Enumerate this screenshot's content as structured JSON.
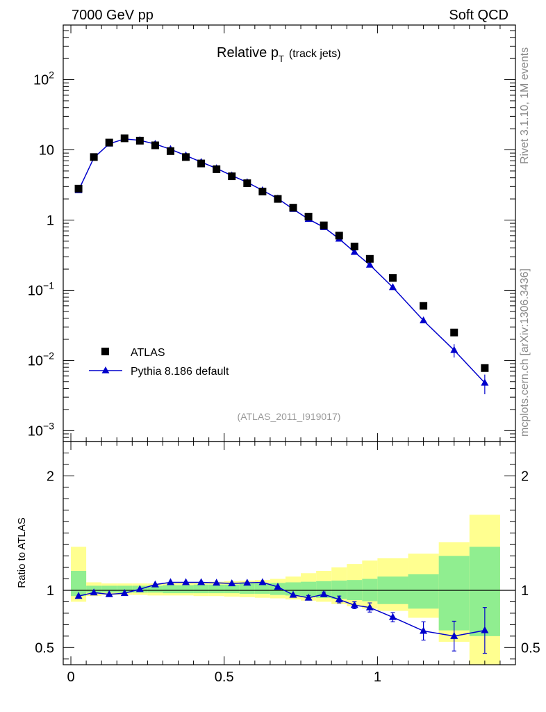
{
  "header": {
    "energy_label": "7000 GeV pp",
    "category_label": "Soft QCD",
    "title_main": "Relative p",
    "title_sub": "T",
    "title_suffix": "(track jets)",
    "analysis_label": "(ATLAS_2011_I919017)",
    "rivet_label": "Rivet 3.1.10,  1M events",
    "mcplots_label": "mcplots.cern.ch [arXiv:1306.3436]"
  },
  "legend": {
    "data_label": "ATLAS",
    "mc_label": "Pythia 8.186 default"
  },
  "colors": {
    "mc": "#0000cc",
    "data": "#000000",
    "band_inner": "#90ee90",
    "band_outer": "#ffff90",
    "analysis_text": "#999999",
    "side_text": "#888888"
  },
  "chart_data": [
    {
      "type": "scatter",
      "name": "main",
      "yscale": "log",
      "ylim": [
        0.0007,
        600
      ],
      "xlim": [
        -0.025,
        1.45
      ],
      "ylabel": "",
      "yticks": [
        {
          "v": 0.001,
          "base": "10",
          "exp": "−3"
        },
        {
          "v": 0.01,
          "base": "10",
          "exp": "−2"
        },
        {
          "v": 0.1,
          "base": "10",
          "exp": "−1"
        },
        {
          "v": 1,
          "base": "1",
          "exp": ""
        },
        {
          "v": 10,
          "base": "10",
          "exp": ""
        },
        {
          "v": 100,
          "base": "10",
          "exp": "2"
        }
      ],
      "series": [
        {
          "name": "ATLAS",
          "x": [
            0.025,
            0.075,
            0.125,
            0.175,
            0.225,
            0.275,
            0.325,
            0.375,
            0.425,
            0.475,
            0.525,
            0.575,
            0.625,
            0.675,
            0.725,
            0.775,
            0.825,
            0.875,
            0.925,
            0.975,
            1.05,
            1.15,
            1.25,
            1.35
          ],
          "y": [
            2.8,
            7.9,
            12.7,
            14.6,
            13.5,
            11.6,
            9.6,
            7.9,
            6.4,
            5.3,
            4.2,
            3.35,
            2.55,
            2.0,
            1.5,
            1.12,
            0.84,
            0.6,
            0.42,
            0.28,
            0.15,
            0.06,
            0.025,
            0.0078
          ]
        },
        {
          "name": "Pythia 8.186 default",
          "x": [
            0.025,
            0.075,
            0.125,
            0.175,
            0.225,
            0.275,
            0.325,
            0.375,
            0.425,
            0.475,
            0.525,
            0.575,
            0.625,
            0.675,
            0.725,
            0.775,
            0.825,
            0.875,
            0.925,
            0.975,
            1.05,
            1.15,
            1.25,
            1.35
          ],
          "y": [
            2.65,
            7.7,
            12.2,
            14.3,
            13.7,
            12.1,
            10.2,
            8.3,
            6.7,
            5.45,
            4.3,
            3.45,
            2.65,
            2.02,
            1.43,
            1.03,
            0.79,
            0.54,
            0.35,
            0.23,
            0.11,
            0.037,
            0.014,
            0.0048
          ],
          "yerr": [
            0,
            0,
            0,
            0,
            0,
            0,
            0,
            0,
            0,
            0,
            0,
            0,
            0,
            0,
            0,
            0,
            0,
            0,
            0,
            0,
            0.004,
            0.0025,
            0.003,
            0.0015
          ]
        }
      ]
    },
    {
      "type": "line",
      "name": "ratio",
      "ylabel": "Ratio to ATLAS",
      "ylim": [
        0.35,
        2.3
      ],
      "xlim": [
        -0.025,
        1.45
      ],
      "xticks": [
        {
          "v": 0,
          "label": "0"
        },
        {
          "v": 0.5,
          "label": "0.5"
        },
        {
          "v": 1,
          "label": "1"
        }
      ],
      "yticks": [
        {
          "v": 0.5,
          "label": "0.5"
        },
        {
          "v": 1,
          "label": "1"
        },
        {
          "v": 2,
          "label": "2"
        }
      ],
      "bin_edges": [
        0.0,
        0.05,
        0.1,
        0.15,
        0.2,
        0.25,
        0.3,
        0.35,
        0.4,
        0.45,
        0.5,
        0.55,
        0.6,
        0.65,
        0.7,
        0.75,
        0.8,
        0.85,
        0.9,
        0.95,
        1.0,
        1.1,
        1.2,
        1.3,
        1.4
      ],
      "band_inner": {
        "lo": [
          0.95,
          0.98,
          0.98,
          0.98,
          0.98,
          0.98,
          0.975,
          0.975,
          0.975,
          0.975,
          0.975,
          0.97,
          0.97,
          0.96,
          0.955,
          0.945,
          0.935,
          0.925,
          0.915,
          0.905,
          0.88,
          0.84,
          0.65,
          0.6
        ],
        "hi": [
          1.17,
          1.04,
          1.04,
          1.04,
          1.04,
          1.04,
          1.045,
          1.045,
          1.05,
          1.05,
          1.05,
          1.06,
          1.06,
          1.065,
          1.07,
          1.075,
          1.08,
          1.085,
          1.09,
          1.1,
          1.12,
          1.14,
          1.3,
          1.38
        ]
      },
      "band_outer": {
        "lo": [
          0.9,
          0.95,
          0.96,
          0.96,
          0.96,
          0.955,
          0.955,
          0.955,
          0.95,
          0.95,
          0.945,
          0.94,
          0.935,
          0.93,
          0.92,
          0.91,
          0.9,
          0.88,
          0.86,
          0.84,
          0.82,
          0.76,
          0.55,
          0.25
        ],
        "hi": [
          1.38,
          1.07,
          1.06,
          1.06,
          1.06,
          1.06,
          1.065,
          1.07,
          1.07,
          1.075,
          1.08,
          1.085,
          1.09,
          1.1,
          1.12,
          1.15,
          1.17,
          1.2,
          1.23,
          1.26,
          1.28,
          1.32,
          1.42,
          1.66
        ]
      },
      "series": [
        {
          "name": "Pythia 8.186 default / ATLAS",
          "x": [
            0.025,
            0.075,
            0.125,
            0.175,
            0.225,
            0.275,
            0.325,
            0.375,
            0.425,
            0.475,
            0.525,
            0.575,
            0.625,
            0.675,
            0.725,
            0.775,
            0.825,
            0.875,
            0.925,
            0.975,
            1.05,
            1.15,
            1.25,
            1.35
          ],
          "y": [
            0.95,
            0.98,
            0.965,
            0.975,
            1.01,
            1.05,
            1.07,
            1.07,
            1.07,
            1.065,
            1.06,
            1.065,
            1.07,
            1.03,
            0.96,
            0.935,
            0.965,
            0.92,
            0.87,
            0.85,
            0.765,
            0.645,
            0.6,
            0.65
          ],
          "yerr": [
            0,
            0,
            0,
            0,
            0,
            0,
            0,
            0,
            0,
            0,
            0,
            0,
            0,
            0,
            0,
            0.02,
            0.02,
            0.03,
            0.03,
            0.04,
            0.04,
            0.08,
            0.13,
            0.2
          ]
        }
      ]
    }
  ]
}
